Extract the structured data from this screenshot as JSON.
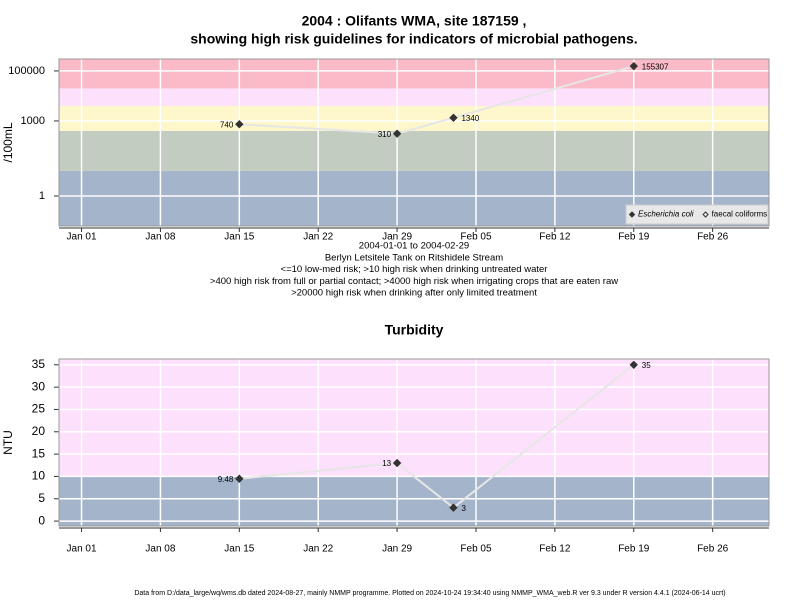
{
  "chart_data": [
    {
      "type": "line",
      "title": [
        "2004 : Olifants WMA, site 187159 ,",
        "showing high risk guidelines for indicators of microbial pathogens."
      ],
      "ylabel": "/100mL",
      "log_y": true,
      "x": [
        "2004-01-15",
        "2004-01-29",
        "2004-02-03",
        "2004-02-19"
      ],
      "series": [
        {
          "name": "Escherichia coli",
          "color": "#333333",
          "filled": true,
          "values": [
            740,
            310,
            1340,
            155307
          ]
        },
        {
          "name": "faecal coliforms",
          "color": "#333333",
          "filled": false,
          "values": [
            null,
            null,
            null,
            null
          ]
        }
      ],
      "line_color": "#e6e6e6",
      "xlim": [
        "2003-12-30",
        "2004-03-02"
      ],
      "xticks": [
        {
          "value": "2004-01-01",
          "label": "Jan 01"
        },
        {
          "value": "2004-01-08",
          "label": "Jan 08"
        },
        {
          "value": "2004-01-15",
          "label": "Jan 15"
        },
        {
          "value": "2004-01-22",
          "label": "Jan 22"
        },
        {
          "value": "2004-01-29",
          "label": "Jan 29"
        },
        {
          "value": "2004-02-05",
          "label": "Feb 05"
        },
        {
          "value": "2004-02-12",
          "label": "Feb 12"
        },
        {
          "value": "2004-02-19",
          "label": "Feb 19"
        },
        {
          "value": "2004-02-26",
          "label": "Feb 26"
        }
      ],
      "ylim": [
        0.063,
        300000
      ],
      "yticks": [
        1,
        1000,
        100000
      ],
      "bands": [
        {
          "from": 0.063,
          "to": 10,
          "color": "#a3b4cb"
        },
        {
          "from": 10,
          "to": 400,
          "color": "#c2ccc0"
        },
        {
          "from": 400,
          "to": 4000,
          "color": "#fdf7cb"
        },
        {
          "from": 4000,
          "to": 20000,
          "color": "#fde0fb"
        },
        {
          "from": 20000,
          "to": 300000,
          "color": "#fbbac7"
        }
      ],
      "grid": true,
      "legend": "bottom-right",
      "notes": [
        "2004-01-01 to 2004-02-29",
        "Berlyn Letsitele Tank on Ritshidele Stream",
        "<=10 low-med risk; >10 high risk when drinking untreated water",
        ">400 high risk from full or partial contact; >4000 high risk when irrigating crops that are eaten raw",
        ">20000 high risk when drinking after only limited treatment"
      ]
    },
    {
      "type": "line",
      "title": [
        "Turbidity"
      ],
      "ylabel": "NTU",
      "log_y": false,
      "x": [
        "2004-01-15",
        "2004-01-29",
        "2004-02-03",
        "2004-02-19"
      ],
      "values": [
        9.48,
        13,
        3,
        35
      ],
      "color": "#333333",
      "line_color": "#e6e6e6",
      "xlim": [
        "2003-12-30",
        "2004-03-02"
      ],
      "xticks": [
        {
          "value": "2004-01-01",
          "label": "Jan 01"
        },
        {
          "value": "2004-01-08",
          "label": "Jan 08"
        },
        {
          "value": "2004-01-15",
          "label": "Jan 15"
        },
        {
          "value": "2004-01-22",
          "label": "Jan 22"
        },
        {
          "value": "2004-01-29",
          "label": "Jan 29"
        },
        {
          "value": "2004-02-05",
          "label": "Feb 05"
        },
        {
          "value": "2004-02-12",
          "label": "Feb 12"
        },
        {
          "value": "2004-02-19",
          "label": "Feb 19"
        },
        {
          "value": "2004-02-26",
          "label": "Feb 26"
        }
      ],
      "ylim": [
        -1.1,
        36.3
      ],
      "yticks": [
        0,
        5,
        10,
        15,
        20,
        25,
        30,
        35
      ],
      "bands": [
        {
          "from": -1.1,
          "to": 10,
          "color": "#a3b4cb"
        },
        {
          "from": 10,
          "to": 36.3,
          "color": "#fde0fb"
        }
      ],
      "grid": true
    }
  ],
  "footer": "Data from D:/data_large/wq/wms.db dated 2024-08-27, mainly NMMP programme. Plotted on 2024-10-24 19:34:40 using NMMP_WMA_web.R ver 9.3 under R version 4.4.1 (2024-06-14 ucrt)"
}
